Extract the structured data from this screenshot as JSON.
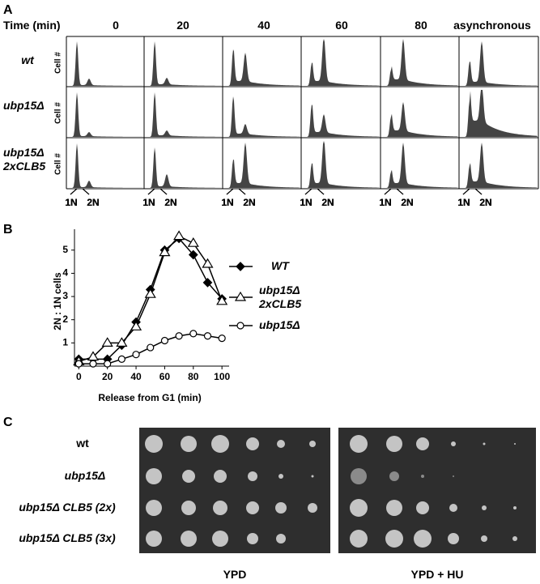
{
  "panel_a": {
    "letter": "A",
    "time_label": "Time (min)",
    "columns": [
      "0",
      "20",
      "40",
      "60",
      "80",
      "asynchronous"
    ],
    "rows": [
      "wt",
      "ubp15Δ",
      "ubp15Δ 2xCLB5"
    ],
    "y_label": "Cell #",
    "x_labels": [
      "1N",
      "2N"
    ]
  },
  "chart_data": {
    "type": "line",
    "letter": "B",
    "x_label": "Release from G1 (min)",
    "y_label": "2N : 1N cells",
    "x": [
      0,
      10,
      20,
      30,
      40,
      50,
      60,
      70,
      80,
      90,
      100
    ],
    "series": [
      {
        "name": "WT",
        "color": "#000000",
        "marker": "diamond",
        "marker_fill": "#000000",
        "values": [
          0.3,
          0.3,
          0.3,
          0.9,
          1.9,
          3.3,
          5.0,
          5.5,
          4.8,
          3.6,
          2.9
        ]
      },
      {
        "name": "ubp15Δ 2xCLB5",
        "color": "#000000",
        "marker": "triangle",
        "marker_fill": "#ffffff",
        "values": [
          0.2,
          0.4,
          1.0,
          1.0,
          1.7,
          3.1,
          4.9,
          5.6,
          5.3,
          4.4,
          2.8
        ]
      },
      {
        "name": "ubp15Δ",
        "color": "#000000",
        "marker": "circle",
        "marker_fill": "#ffffff",
        "values": [
          0.1,
          0.1,
          0.1,
          0.3,
          0.5,
          0.8,
          1.1,
          1.3,
          1.4,
          1.3,
          1.2
        ]
      }
    ],
    "xlim": [
      -3,
      105
    ],
    "ylim": [
      0,
      5.9
    ],
    "xticks": [
      0,
      20,
      40,
      60,
      80,
      100
    ],
    "yticks": [
      1,
      2,
      3,
      4,
      5
    ]
  },
  "panel_c": {
    "letter": "C",
    "rows": [
      "wt",
      "ubp15Δ",
      "ubp15Δ CLB5 (2x)",
      "ubp15Δ CLB5 (3x)"
    ],
    "plates": [
      "YPD",
      "YPD + HU"
    ]
  }
}
